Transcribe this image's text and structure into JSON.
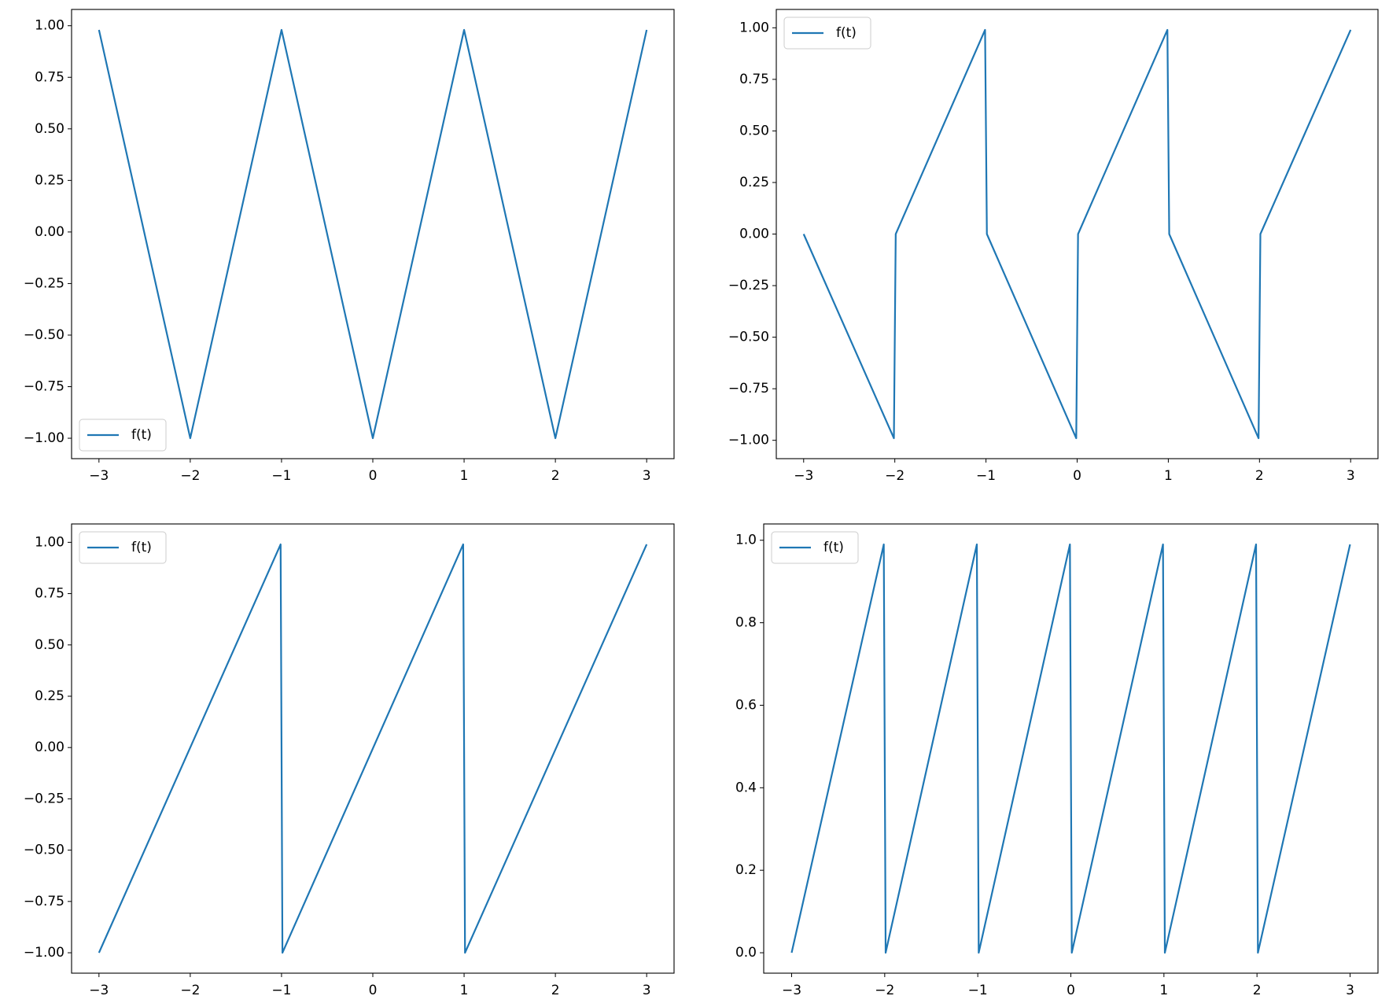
{
  "chart_data": [
    {
      "type": "line",
      "x": [
        -3,
        -2,
        -1,
        0,
        1,
        2,
        3
      ],
      "series": [
        {
          "name": "f(t)",
          "color": "#1f77b4",
          "values": [
            0.98,
            -1,
            0.98,
            -1,
            0.98,
            -1,
            0.98
          ]
        }
      ],
      "xlim": [
        -3.3,
        3.3
      ],
      "ylim": [
        -1.099,
        1.079
      ],
      "xticks": [
        {
          "value": -3,
          "label": "−3"
        },
        {
          "value": -2,
          "label": "−2"
        },
        {
          "value": -1,
          "label": "−1"
        },
        0,
        1,
        2,
        3
      ],
      "yticks": [
        {
          "value": -1,
          "label": "−1.00"
        },
        {
          "value": -0.75,
          "label": "−0.75"
        },
        {
          "value": -0.5,
          "label": "−0.50"
        },
        {
          "value": -0.25,
          "label": "−0.25"
        },
        {
          "value": 0,
          "label": "0.00"
        },
        0.25,
        {
          "value": 0.5,
          "label": "0.50"
        },
        0.75,
        {
          "value": 1,
          "label": "1.00"
        }
      ],
      "legend": "lower left"
    },
    {
      "type": "line",
      "x": [
        -3,
        -2.01,
        -1.99,
        -1.01,
        -0.99,
        -0.01,
        0.01,
        0.99,
        1.01,
        1.99,
        2.01,
        3
      ],
      "series": [
        {
          "name": "f(t)",
          "color": "#1f77b4",
          "values": [
            0,
            -0.99,
            0,
            0.99,
            0,
            -0.99,
            0,
            0.99,
            0,
            -0.99,
            0,
            0.99
          ]
        }
      ],
      "xlim": [
        -3.3,
        3.3
      ],
      "ylim": [
        -1.089,
        1.089
      ],
      "xticks": [
        {
          "value": -3,
          "label": "−3"
        },
        {
          "value": -2,
          "label": "−2"
        },
        {
          "value": -1,
          "label": "−1"
        },
        0,
        1,
        2,
        3
      ],
      "yticks": [
        {
          "value": -1,
          "label": "−1.00"
        },
        {
          "value": -0.75,
          "label": "−0.75"
        },
        {
          "value": -0.5,
          "label": "−0.50"
        },
        {
          "value": -0.25,
          "label": "−0.25"
        },
        {
          "value": 0,
          "label": "0.00"
        },
        0.25,
        {
          "value": 0.5,
          "label": "0.50"
        },
        0.75,
        {
          "value": 1,
          "label": "1.00"
        }
      ],
      "legend": "upper left"
    },
    {
      "type": "line",
      "x": [
        -3,
        -1.01,
        -0.99,
        0.99,
        1.01,
        3
      ],
      "series": [
        {
          "name": "f(t)",
          "color": "#1f77b4",
          "values": [
            -1,
            0.99,
            -1,
            0.99,
            -1,
            0.99
          ]
        }
      ],
      "xlim": [
        -3.3,
        3.3
      ],
      "ylim": [
        -1.0995,
        1.0895
      ],
      "xticks": [
        {
          "value": -3,
          "label": "−3"
        },
        {
          "value": -2,
          "label": "−2"
        },
        {
          "value": -1,
          "label": "−1"
        },
        0,
        1,
        2,
        3
      ],
      "yticks": [
        {
          "value": -1,
          "label": "−1.00"
        },
        {
          "value": -0.75,
          "label": "−0.75"
        },
        {
          "value": -0.5,
          "label": "−0.50"
        },
        {
          "value": -0.25,
          "label": "−0.25"
        },
        {
          "value": 0,
          "label": "0.00"
        },
        0.25,
        {
          "value": 0.5,
          "label": "0.50"
        },
        0.75,
        {
          "value": 1,
          "label": "1.00"
        }
      ],
      "legend": "upper left"
    },
    {
      "type": "line",
      "x": [
        -3,
        -2.01,
        -1.99,
        -1.01,
        -0.99,
        -0.01,
        0.01,
        0.99,
        1.01,
        1.99,
        2.01,
        3
      ],
      "series": [
        {
          "name": "f(t)",
          "color": "#1f77b4",
          "values": [
            0,
            0.99,
            0,
            0.99,
            0,
            0.99,
            0,
            0.99,
            0,
            0.99,
            0,
            0.99
          ]
        }
      ],
      "xlim": [
        -3.3,
        3.3
      ],
      "ylim": [
        -0.0495,
        1.0395
      ],
      "xticks": [
        {
          "value": -3,
          "label": "−3"
        },
        {
          "value": -2,
          "label": "−2"
        },
        {
          "value": -1,
          "label": "−1"
        },
        0,
        1,
        2,
        3
      ],
      "yticks": [
        {
          "value": 0,
          "label": "0.0"
        },
        0.2,
        0.4,
        0.6,
        0.8,
        {
          "value": 1,
          "label": "1.0"
        }
      ],
      "legend": "upper left"
    }
  ]
}
